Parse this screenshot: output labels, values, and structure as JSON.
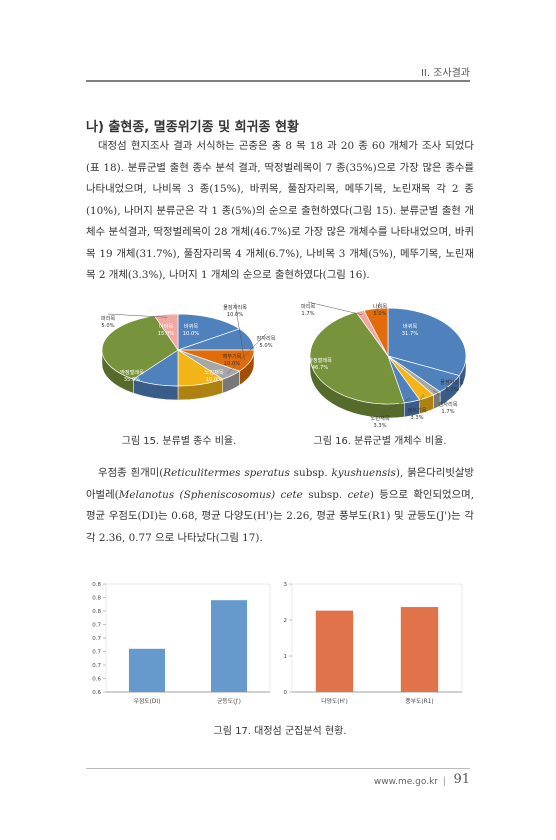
{
  "header": {
    "section": "II. 조사결과"
  },
  "section_heading": "나) 출현종, 멸종위기종 및 희귀종 현황",
  "paragraph1": "대정섬 현지조사 결과 서식하는 곤충은 총 8 목 18 과 20 종 60 개체가 조사 되었다(표 18). 분류군별 출현 종수 분석 결과, 딱정벌레목이 7 종(35%)으로 가장 많은 종수를 나타내었으며, 나비목 3 종(15%), 바퀴목, 풀잠자리목, 메뚜기목, 노린재목 각 2 종(10%), 나머지 분류군은 각 1 종(5%)의 순으로 출현하였다(그림 15). 분류군별 출현 개체수 분석결과, 딱정벌레목이 28 개체(46.7%)로 가장 많은 개체수를 나타내었으며, 바퀴목 19 개체(31.7%), 풀잠자리목 4 개체(6.7%), 나비목 3 개체(5%), 메뚜기목, 노린재목 2 개체(3.3%), 나머지 1 개체의 순으로 출현하였다(그림 16).",
  "paragraph2": {
    "t1": "우점종 흰개미(",
    "s1": "Reticulitermes speratus",
    "t2": " subsp. ",
    "s2": "kyushuensis",
    "t3": "), 붉은다리빗살방아벌레(",
    "s3": "Melanotus (Spheniscosomus) cete",
    "t4": " subsp. ",
    "s4": "cete",
    "t5": ") 등으로 확인되었으며, 평균 우점도(DI)는 0.68, 평균 다양도(H')는 2.26, 평균 풍부도(R1) 및 균등도(J')는 각각 2.36, 0.77 으로 나타났다(그림 17)."
  },
  "figure15": {
    "caption": "그림 15. 분류별 종수 비율.",
    "slices": [
      {
        "label": "나비목",
        "value": 15.0,
        "pct": "15.0%",
        "color": "#4F81BD"
      },
      {
        "label": "바퀴목",
        "value": 10.0,
        "pct": "10.0%",
        "color": "#4F81BD"
      },
      {
        "label": "풀잠자리목",
        "value": 10.0,
        "pct": "10.0%",
        "color": "#E36C0A"
      },
      {
        "label": "잠자리목",
        "value": 5.0,
        "pct": "5.0%",
        "color": "#A6A6A6"
      },
      {
        "label": "메뚜기목",
        "value": 10.0,
        "pct": "10.0%",
        "color": "#F2B416"
      },
      {
        "label": "노린재목",
        "value": 10.0,
        "pct": "10.0%",
        "color": "#4F81BD"
      },
      {
        "label": "딱정벌레목",
        "value": 35.0,
        "pct": "35.0%",
        "color": "#77933C"
      },
      {
        "label": "파리목",
        "value": 5.0,
        "pct": "5.0%",
        "color": "#F4A6A0"
      }
    ]
  },
  "figure16": {
    "caption": "그림 16. 분류군별 개체수 비율.",
    "slices": [
      {
        "label": "바퀴목",
        "value": 31.7,
        "pct": "31.7%",
        "color": "#4F81BD"
      },
      {
        "label": "풀잠자리목",
        "value": 6.7,
        "pct": "6.7%",
        "color": "#4F81BD"
      },
      {
        "label": "잠자리목",
        "value": 1.7,
        "pct": "1.7%",
        "color": "#A6A6A6"
      },
      {
        "label": "메뚜기목",
        "value": 3.3,
        "pct": "3.3%",
        "color": "#F2B416"
      },
      {
        "label": "노린재목",
        "value": 3.3,
        "pct": "3.3%",
        "color": "#4F81BD"
      },
      {
        "label": "딱정벌레목",
        "value": 46.7,
        "pct": "46.7%",
        "color": "#77933C"
      },
      {
        "label": "파리목",
        "value": 1.7,
        "pct": "1.7%",
        "color": "#F4A6A0"
      },
      {
        "label": "나비목",
        "value": 5.0,
        "pct": "5.0%",
        "color": "#E36C0A"
      }
    ]
  },
  "chart_data": [
    {
      "type": "bar",
      "categories": [
        "우점도(DI)",
        "균등도(J')"
      ],
      "values": [
        0.68,
        0.77
      ],
      "ylim": [
        0.6,
        0.8
      ],
      "yticks": [
        "0.6",
        "0.6",
        "0.7",
        "0.7",
        "0.7",
        "0.7",
        "0.8",
        "0.8",
        "0.8"
      ],
      "color": "#6699CC"
    },
    {
      "type": "bar",
      "categories": [
        "다양도(H')",
        "풍부도(R1)"
      ],
      "values": [
        2.26,
        2.36
      ],
      "ylim": [
        0,
        3
      ],
      "yticks": [
        "0",
        "1",
        "2",
        "3"
      ],
      "color": "#E0734A"
    }
  ],
  "figure17": {
    "caption": "그림 17. 대정섬 군집분석 현황."
  },
  "footer": {
    "url": "www.me.go.kr",
    "separator": "|",
    "page": "91"
  }
}
